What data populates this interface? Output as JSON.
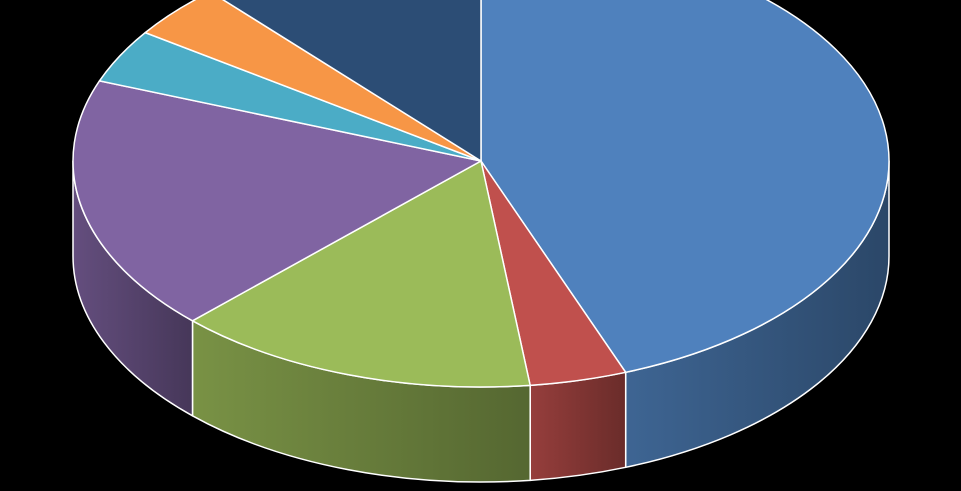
{
  "chart_data": {
    "type": "pie",
    "style": "3d",
    "title": "",
    "legend": "none",
    "data_labels": "none",
    "start_angle_deg": 0,
    "direction": "clockwise",
    "slices": [
      {
        "value": 46,
        "color": "#4F81BD"
      },
      {
        "value": 4,
        "color": "#C0504D"
      },
      {
        "value": 15,
        "color": "#9BBB59"
      },
      {
        "value": 19,
        "color": "#8064A2"
      },
      {
        "value": 4,
        "color": "#4BACC6"
      },
      {
        "value": 4,
        "color": "#F79646"
      },
      {
        "value": 12,
        "color": "#2C4D75"
      }
    ]
  }
}
